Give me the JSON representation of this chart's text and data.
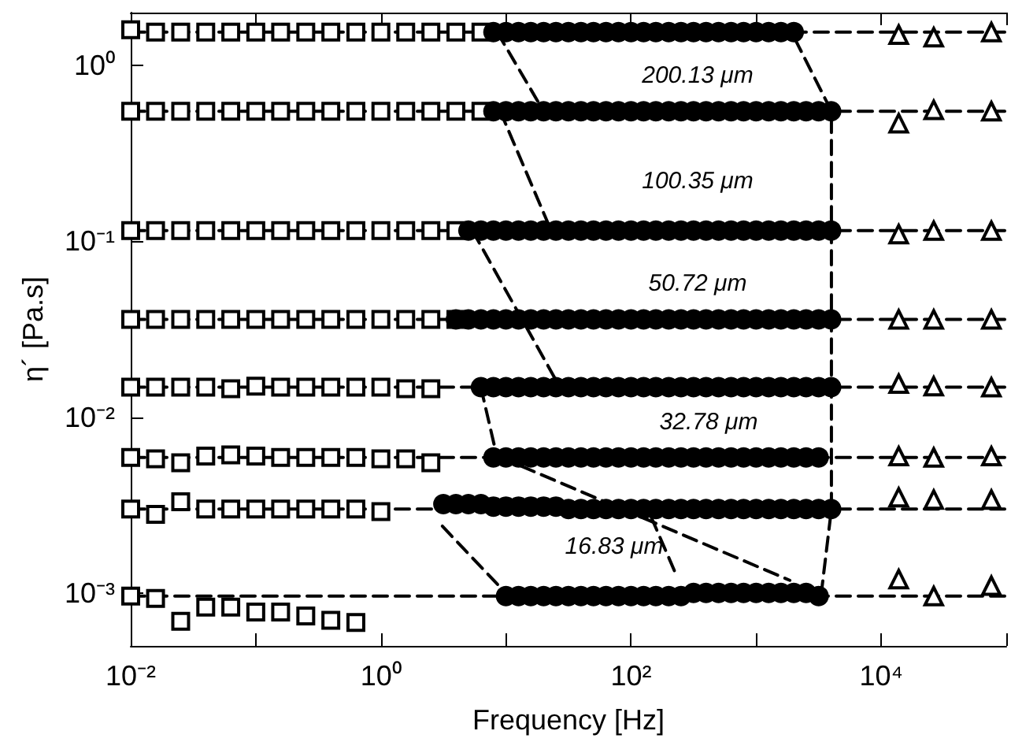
{
  "chart_data": {
    "type": "scatter",
    "xlabel": "Frequency [Hz]",
    "ylabel": "η´ [Pa.s]",
    "log": "xy",
    "grid": false,
    "xlim": [
      0.01,
      100000
    ],
    "ylim": [
      0.0005,
      2
    ],
    "xticks": [
      {
        "value": 0.01,
        "label": "10⁻²"
      },
      {
        "value": 1,
        "label": "10⁰"
      },
      {
        "value": 100,
        "label": "10²"
      },
      {
        "value": 10000,
        "label": "10⁴"
      }
    ],
    "yticks": [
      {
        "value": 0.001,
        "label": "10⁻³"
      },
      {
        "value": 0.01,
        "label": "10⁻²"
      },
      {
        "value": 0.1,
        "label": "10⁻¹"
      },
      {
        "value": 1,
        "label": "10⁰"
      }
    ],
    "annotations": [
      "200.13 μm",
      "100.35 μm",
      "50.72 μm",
      "32.78 μm",
      "16.83 μm"
    ],
    "series": [
      {
        "type": "line",
        "line_style": "dashed",
        "marker": "none",
        "color": "#000000",
        "x": [
          0.01,
          100000
        ],
        "values": [
          1.55,
          1.55
        ]
      },
      {
        "type": "line",
        "line_style": "dashed",
        "marker": "none",
        "color": "#000000",
        "x": [
          0.01,
          100000
        ],
        "values": [
          0.55,
          0.55
        ]
      },
      {
        "type": "line",
        "line_style": "dashed",
        "marker": "none",
        "color": "#000000",
        "x": [
          0.01,
          100000
        ],
        "values": [
          0.115,
          0.115
        ]
      },
      {
        "type": "line",
        "line_style": "dashed",
        "marker": "none",
        "color": "#000000",
        "x": [
          0.01,
          100000
        ],
        "values": [
          0.036,
          0.036
        ]
      },
      {
        "type": "line",
        "line_style": "dashed",
        "marker": "none",
        "color": "#000000",
        "x": [
          0.01,
          100000
        ],
        "values": [
          0.0148,
          0.0148
        ]
      },
      {
        "type": "line",
        "line_style": "dashed",
        "marker": "none",
        "color": "#000000",
        "x": [
          0.01,
          100000
        ],
        "values": [
          0.0059,
          0.0059
        ]
      },
      {
        "type": "line",
        "line_style": "dashed",
        "marker": "none",
        "color": "#000000",
        "x": [
          0.01,
          100000
        ],
        "values": [
          0.003,
          0.003
        ]
      },
      {
        "type": "line",
        "line_style": "dashed",
        "marker": "none",
        "color": "#000000",
        "x": [
          0.01,
          100000
        ],
        "values": [
          0.00096,
          0.00096
        ]
      },
      {
        "type": "line",
        "line_style": "dashed",
        "marker": "none",
        "color": "#000000",
        "x": [
          8.5,
          20
        ],
        "values": [
          1.55,
          0.55
        ]
      },
      {
        "type": "line",
        "line_style": "dashed",
        "marker": "none",
        "color": "#000000",
        "x": [
          9,
          23
        ],
        "values": [
          0.55,
          0.115
        ]
      },
      {
        "type": "line",
        "line_style": "dashed",
        "marker": "none",
        "color": "#000000",
        "x": [
          5.4,
          27
        ],
        "values": [
          0.115,
          0.0148
        ]
      },
      {
        "type": "line",
        "line_style": "dashed",
        "marker": "none",
        "color": "#000000",
        "x": [
          6.3,
          8.5
        ],
        "values": [
          0.0148,
          0.0059
        ]
      },
      {
        "type": "line",
        "line_style": "dashed",
        "marker": "none",
        "color": "#000000",
        "x": [
          9.1,
          1860
        ],
        "values": [
          0.0059,
          0.00118
        ]
      },
      {
        "type": "line",
        "line_style": "dashed",
        "marker": "none",
        "color": "#000000",
        "x": [
          145,
          234
        ],
        "values": [
          0.0027,
          0.00123
        ]
      },
      {
        "type": "line",
        "line_style": "dashed",
        "marker": "none",
        "color": "#000000",
        "x": [
          3.1,
          10.5
        ],
        "values": [
          0.0024,
          0.00096
        ]
      },
      {
        "type": "line",
        "line_style": "dashed",
        "marker": "none",
        "color": "#000000",
        "x": [
          2040,
          4000,
          4000,
          3300
        ],
        "values": [
          1.42,
          0.55,
          0.003,
          0.00096
        ]
      },
      {
        "marker": "square",
        "color": "#000000",
        "x": [
          0.01,
          0.0158,
          0.0251,
          0.0398,
          0.0631,
          0.1,
          0.158,
          0.251,
          0.398,
          0.631,
          1,
          1.58,
          2.51,
          3.98,
          6.31,
          0.01,
          0.0158,
          0.0251,
          0.0398,
          0.0631,
          0.1,
          0.158,
          0.251,
          0.398,
          0.631,
          1,
          1.58,
          2.51,
          3.98,
          6.31,
          0.01,
          0.0158,
          0.0251,
          0.0398,
          0.0631,
          0.1,
          0.158,
          0.251,
          0.398,
          0.631,
          1,
          1.58,
          2.51,
          3.98,
          0.01,
          0.0158,
          0.0251,
          0.0398,
          0.0631,
          0.1,
          0.158,
          0.251,
          0.398,
          0.631,
          1,
          1.58,
          2.51,
          3.98,
          0.01,
          0.0158,
          0.0251,
          0.0398,
          0.0631,
          0.1,
          0.158,
          0.251,
          0.398,
          0.631,
          1,
          1.58,
          2.51,
          0.01,
          0.0158,
          0.0251,
          0.0398,
          0.0631,
          0.1,
          0.158,
          0.251,
          0.398,
          0.631,
          1,
          1.58,
          2.51,
          0.01,
          0.0158,
          0.0251,
          0.0398,
          0.0631,
          0.1,
          0.158,
          0.251,
          0.398,
          0.631,
          1,
          0.01,
          0.0158,
          0.0251,
          0.0398,
          0.0631,
          0.1,
          0.158,
          0.251,
          0.398,
          0.631
        ],
        "values": [
          1.6,
          1.55,
          1.55,
          1.55,
          1.55,
          1.55,
          1.55,
          1.55,
          1.55,
          1.55,
          1.55,
          1.55,
          1.55,
          1.55,
          1.55,
          0.55,
          0.55,
          0.55,
          0.55,
          0.55,
          0.55,
          0.55,
          0.55,
          0.55,
          0.55,
          0.55,
          0.55,
          0.55,
          0.55,
          0.55,
          0.115,
          0.115,
          0.115,
          0.115,
          0.115,
          0.115,
          0.115,
          0.115,
          0.115,
          0.115,
          0.115,
          0.115,
          0.115,
          0.115,
          0.036,
          0.036,
          0.036,
          0.036,
          0.036,
          0.036,
          0.036,
          0.036,
          0.036,
          0.036,
          0.036,
          0.036,
          0.036,
          0.036,
          0.0148,
          0.0148,
          0.0148,
          0.0148,
          0.0145,
          0.015,
          0.0148,
          0.0148,
          0.0148,
          0.0148,
          0.0148,
          0.0145,
          0.0145,
          0.0059,
          0.0058,
          0.0055,
          0.006,
          0.0061,
          0.006,
          0.0059,
          0.0059,
          0.0059,
          0.0059,
          0.0058,
          0.0058,
          0.0055,
          0.003,
          0.0028,
          0.0033,
          0.003,
          0.003,
          0.003,
          0.003,
          0.003,
          0.003,
          0.003,
          0.0029,
          0.00096,
          0.00093,
          0.00069,
          0.00083,
          0.00083,
          0.00078,
          0.00078,
          0.00074,
          0.0007,
          0.00068
        ]
      },
      {
        "marker": "circle",
        "color": "#000000",
        "x": [
          7.94,
          10,
          12.6,
          15.8,
          20,
          25.1,
          31.6,
          39.8,
          50.1,
          63.1,
          79.4,
          100,
          126,
          158,
          200,
          251,
          316,
          398,
          501,
          631,
          794,
          1000,
          1260,
          1580,
          2000,
          7.94,
          10,
          12.6,
          15.8,
          20,
          25.1,
          31.6,
          39.8,
          50.1,
          63.1,
          79.4,
          100,
          126,
          158,
          200,
          251,
          316,
          398,
          501,
          631,
          794,
          1000,
          1260,
          1580,
          2000,
          2510,
          3160,
          3980,
          5.01,
          6.31,
          7.94,
          10,
          12.6,
          15.8,
          20,
          25.1,
          31.6,
          39.8,
          50.1,
          63.1,
          79.4,
          100,
          126,
          158,
          200,
          251,
          316,
          398,
          501,
          631,
          794,
          1000,
          1260,
          1580,
          2000,
          2510,
          3160,
          3980,
          3.98,
          5.01,
          6.31,
          7.94,
          10,
          12.6,
          15.8,
          20,
          25.1,
          31.6,
          39.8,
          50.1,
          63.1,
          79.4,
          100,
          126,
          158,
          200,
          251,
          316,
          398,
          501,
          631,
          794,
          1000,
          1260,
          1580,
          2000,
          2510,
          3160,
          3980,
          6.31,
          7.94,
          10,
          12.6,
          15.8,
          20,
          25.1,
          31.6,
          39.8,
          50.1,
          63.1,
          79.4,
          100,
          126,
          158,
          200,
          251,
          316,
          398,
          501,
          631,
          794,
          1000,
          1260,
          1580,
          2000,
          2510,
          3160,
          3980,
          7.94,
          10,
          12.6,
          15.8,
          20,
          25.1,
          31.6,
          39.8,
          50.1,
          63.1,
          79.4,
          100,
          126,
          158,
          200,
          251,
          316,
          398,
          501,
          631,
          794,
          1000,
          1260,
          1580,
          2000,
          2510,
          3160,
          3.16,
          3.98,
          5.01,
          6.31,
          7.94,
          10,
          12.6,
          15.8,
          20,
          25.1,
          31.6,
          39.8,
          50.1,
          63.1,
          79.4,
          100,
          126,
          158,
          200,
          251,
          316,
          398,
          501,
          631,
          794,
          1000,
          1260,
          1580,
          2000,
          2510,
          3160,
          3980,
          10,
          12.6,
          15.8,
          20,
          25.1,
          31.6,
          39.8,
          50.1,
          63.1,
          79.4,
          100,
          126,
          158,
          200,
          251,
          316,
          398,
          501,
          631,
          794,
          1000,
          1260,
          1580,
          2000,
          2510,
          3160
        ],
        "values": [
          1.55,
          1.55,
          1.55,
          1.55,
          1.55,
          1.55,
          1.55,
          1.55,
          1.55,
          1.55,
          1.55,
          1.55,
          1.55,
          1.55,
          1.55,
          1.55,
          1.55,
          1.55,
          1.55,
          1.55,
          1.55,
          1.55,
          1.55,
          1.55,
          1.55,
          0.55,
          0.55,
          0.55,
          0.55,
          0.55,
          0.55,
          0.55,
          0.55,
          0.55,
          0.55,
          0.55,
          0.55,
          0.55,
          0.55,
          0.55,
          0.55,
          0.55,
          0.55,
          0.55,
          0.55,
          0.55,
          0.55,
          0.55,
          0.55,
          0.55,
          0.55,
          0.55,
          0.55,
          0.115,
          0.115,
          0.115,
          0.115,
          0.115,
          0.115,
          0.115,
          0.115,
          0.115,
          0.115,
          0.115,
          0.115,
          0.115,
          0.115,
          0.115,
          0.115,
          0.115,
          0.115,
          0.115,
          0.115,
          0.115,
          0.115,
          0.115,
          0.115,
          0.115,
          0.115,
          0.115,
          0.115,
          0.115,
          0.115,
          0.036,
          0.036,
          0.036,
          0.036,
          0.036,
          0.036,
          0.036,
          0.036,
          0.036,
          0.036,
          0.036,
          0.036,
          0.036,
          0.036,
          0.036,
          0.036,
          0.036,
          0.036,
          0.036,
          0.036,
          0.036,
          0.036,
          0.036,
          0.036,
          0.036,
          0.036,
          0.036,
          0.036,
          0.036,
          0.036,
          0.036,
          0.0148,
          0.0148,
          0.0148,
          0.0148,
          0.0148,
          0.0148,
          0.0148,
          0.0148,
          0.0148,
          0.0148,
          0.0148,
          0.0148,
          0.0148,
          0.0148,
          0.0148,
          0.0148,
          0.0148,
          0.0148,
          0.0148,
          0.0148,
          0.0148,
          0.0148,
          0.0148,
          0.0148,
          0.0148,
          0.0148,
          0.0148,
          0.0148,
          0.0148,
          0.0059,
          0.0059,
          0.0059,
          0.0059,
          0.0059,
          0.0059,
          0.0059,
          0.0059,
          0.0059,
          0.0059,
          0.0059,
          0.0059,
          0.0059,
          0.0059,
          0.0059,
          0.0059,
          0.0059,
          0.0059,
          0.0059,
          0.0059,
          0.0059,
          0.0059,
          0.0059,
          0.0059,
          0.0059,
          0.0059,
          0.0059,
          0.0032,
          0.0032,
          0.0032,
          0.0032,
          0.0031,
          0.0031,
          0.0031,
          0.0031,
          0.0031,
          0.0031,
          0.003,
          0.003,
          0.003,
          0.003,
          0.003,
          0.003,
          0.003,
          0.003,
          0.003,
          0.003,
          0.003,
          0.003,
          0.003,
          0.003,
          0.003,
          0.003,
          0.003,
          0.003,
          0.003,
          0.003,
          0.003,
          0.003,
          0.00096,
          0.00096,
          0.00096,
          0.00096,
          0.00096,
          0.00096,
          0.00096,
          0.00096,
          0.00096,
          0.00096,
          0.00096,
          0.00096,
          0.00096,
          0.00096,
          0.00096,
          0.001,
          0.001,
          0.001,
          0.001,
          0.001,
          0.001,
          0.001,
          0.001,
          0.001,
          0.001,
          0.00096
        ]
      },
      {
        "marker": "triangle",
        "color": "#000000",
        "x": [
          13800,
          26300,
          76000,
          13800,
          26300,
          76000,
          13800,
          26300,
          76000,
          13800,
          26300,
          76000,
          13800,
          26300,
          76000,
          13800,
          26300,
          76000,
          13800,
          26300,
          76000,
          13800,
          26300,
          76000
        ],
        "values": [
          1.5,
          1.45,
          1.55,
          0.47,
          0.56,
          0.55,
          0.11,
          0.115,
          0.115,
          0.036,
          0.036,
          0.036,
          0.0155,
          0.015,
          0.0148,
          0.006,
          0.0059,
          0.006,
          0.0035,
          0.0034,
          0.0034,
          0.0012,
          0.00096,
          0.0011
        ]
      }
    ]
  }
}
